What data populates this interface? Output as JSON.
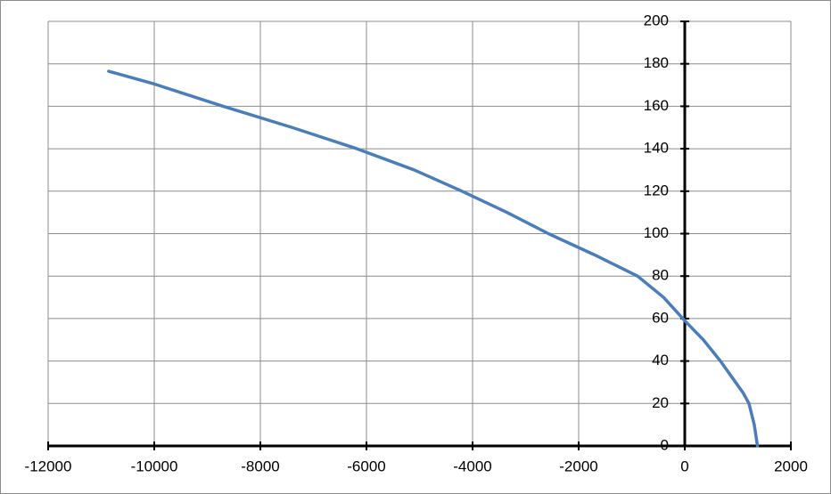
{
  "chart_data": {
    "type": "line",
    "x": [
      -10860,
      -10000,
      -8700,
      -7400,
      -6180,
      -5100,
      -4200,
      -3350,
      -2570,
      -1700,
      -890,
      -400,
      0,
      350,
      672,
      900,
      1100,
      1210,
      1310,
      1370
    ],
    "series": [
      {
        "color": "#4a7ebb",
        "values": [
          176.5,
          170.5,
          160,
          150,
          140,
          130,
          120,
          110,
          100,
          90,
          80,
          70,
          59,
          50,
          40,
          32,
          25,
          20,
          10,
          0
        ]
      }
    ],
    "xlim": [
      -12000,
      2000
    ],
    "xticks": [
      -12000,
      -10000,
      -8000,
      -6000,
      -4000,
      -2000,
      0,
      2000
    ],
    "ylim": [
      0,
      200
    ],
    "yticks": [
      0,
      20,
      40,
      60,
      80,
      100,
      120,
      140,
      160,
      180,
      200
    ],
    "grid": true
  }
}
